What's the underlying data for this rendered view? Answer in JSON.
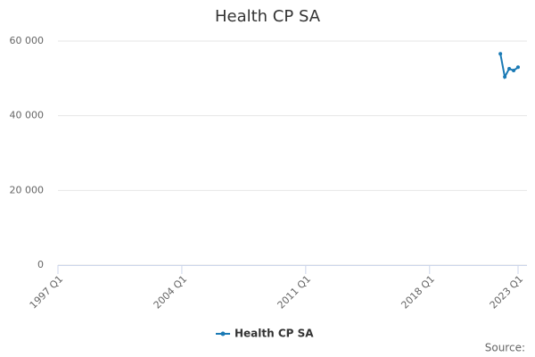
{
  "chart_data": {
    "type": "line",
    "title": "Health CP SA",
    "x": [
      2022,
      2022.25,
      2022.5,
      2022.75,
      2023
    ],
    "series": [
      {
        "name": "Health CP SA",
        "color": "#1a7ab5",
        "values": [
          56600,
          50400,
          52600,
          52100,
          53000
        ]
      }
    ],
    "xlim": [
      1997,
      2023
    ],
    "xticks": [
      {
        "value": 1997,
        "label": "1997 Q1"
      },
      {
        "value": 2004,
        "label": "2004 Q1"
      },
      {
        "value": 2011,
        "label": "2011 Q1"
      },
      {
        "value": 2018,
        "label": "2018 Q1"
      },
      {
        "value": 2023,
        "label": "2023 Q1"
      }
    ],
    "ylim": [
      0,
      60000
    ],
    "yticks": [
      0,
      {
        "value": 20000,
        "label": "20 000"
      },
      {
        "value": 40000,
        "label": "40 000"
      },
      {
        "value": 60000,
        "label": "60 000"
      }
    ],
    "grid": true,
    "legend": "bottom",
    "source": "Source:"
  }
}
